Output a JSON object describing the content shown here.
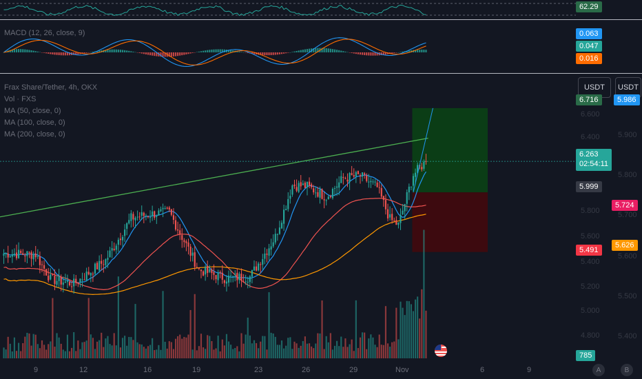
{
  "rsi": {
    "value": "62.29"
  },
  "macd": {
    "legend": "MACD (12, 26, close, 9)",
    "badges": [
      "0.063",
      "0.047",
      "0.016"
    ]
  },
  "main": {
    "legends": [
      "Frax Share/Tether, 4h, OKX",
      "Vol · FXS",
      "MA (50, close, 0)",
      "MA (100, close, 0)",
      "MA (200, close, 0)"
    ],
    "currency_buttons": [
      "USDT",
      "USDT"
    ],
    "badges": {
      "target": "6.716",
      "target_right": "5.986",
      "price": "6.263",
      "countdown": "02:54:11",
      "entry": "5.999",
      "stop": "5.491",
      "ma50": "5.724",
      "ma100": "5.626",
      "volume": "785"
    },
    "y_ticks_inner": [
      "6.600",
      "6.400",
      "5.800",
      "5.600",
      "5.400",
      "5.200",
      "5.000",
      "4.800"
    ],
    "y_ticks_outer": [
      "5.900",
      "5.800",
      "5.700",
      "5.600",
      "5.500",
      "5.400"
    ],
    "x_ticks": [
      "9",
      "12",
      "16",
      "19",
      "23",
      "26",
      "29",
      "Nov",
      "6",
      "9"
    ],
    "axis_buttons": [
      "A",
      "B"
    ]
  },
  "colors": {
    "up": "#26a69a",
    "down": "#ef5350",
    "ma50": "#ef5350",
    "ma100": "#ff9800",
    "ma200": "#2196f3",
    "macd": "#2196f3",
    "signal": "#ff6d00",
    "target_zone": "#0b3d16",
    "stop_zone": "#3d0a0f"
  },
  "chart_data": {
    "type": "candlestick",
    "symbol": "Frax Share/Tether",
    "interval": "4h",
    "exchange": "OKX",
    "last_price": 6.263,
    "trend_line": [
      [
        0,
        5.79
      ],
      [
        200,
        6.46
      ]
    ],
    "position": {
      "target": 6.716,
      "entry": 5.999,
      "stop": 5.491
    },
    "key_points": [
      {
        "bar": 0,
        "close": 5.48
      },
      {
        "bar": 15,
        "close": 5.47
      },
      {
        "bar": 22,
        "close": 5.26
      },
      {
        "bar": 33,
        "close": 5.22
      },
      {
        "bar": 48,
        "close": 5.42
      },
      {
        "bar": 60,
        "close": 5.78
      },
      {
        "bar": 68,
        "close": 5.81
      },
      {
        "bar": 78,
        "close": 5.83
      },
      {
        "bar": 92,
        "close": 5.34
      },
      {
        "bar": 104,
        "close": 5.27
      },
      {
        "bar": 116,
        "close": 5.28
      },
      {
        "bar": 128,
        "close": 5.62
      },
      {
        "bar": 136,
        "close": 6.06
      },
      {
        "bar": 143,
        "close": 6.05
      },
      {
        "bar": 152,
        "close": 5.96
      },
      {
        "bar": 160,
        "close": 6.12
      },
      {
        "bar": 168,
        "close": 6.14
      },
      {
        "bar": 176,
        "close": 6.04
      },
      {
        "bar": 182,
        "close": 5.77
      },
      {
        "bar": 186,
        "close": 5.72
      },
      {
        "bar": 193,
        "close": 6.15
      },
      {
        "bar": 199,
        "close": 6.263
      }
    ],
    "volume_last": 785
  }
}
